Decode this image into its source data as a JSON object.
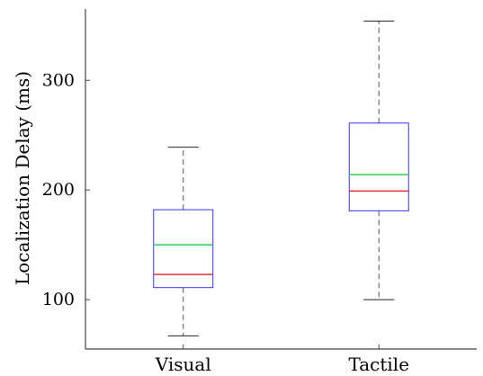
{
  "chart_data": {
    "type": "box",
    "title": "",
    "xlabel": "",
    "ylabel": "Localization Delay (ms)",
    "ylim": [
      55,
      365
    ],
    "yticks": [
      100,
      200,
      300
    ],
    "categories": [
      "Visual",
      "Tactile"
    ],
    "boxes": [
      {
        "category": "Visual",
        "whisker_low": 67,
        "q1": 111,
        "median": 123,
        "mean": 150,
        "q3": 182,
        "whisker_high": 239
      },
      {
        "category": "Tactile",
        "whisker_low": 100,
        "q1": 181,
        "median": 199,
        "mean": 214,
        "q3": 261,
        "whisker_high": 354
      }
    ],
    "colors": {
      "box": "#3333ff",
      "median": "#e8303a",
      "mean": "#33cc55",
      "whisker": "#555555",
      "axis": "#444444"
    }
  }
}
